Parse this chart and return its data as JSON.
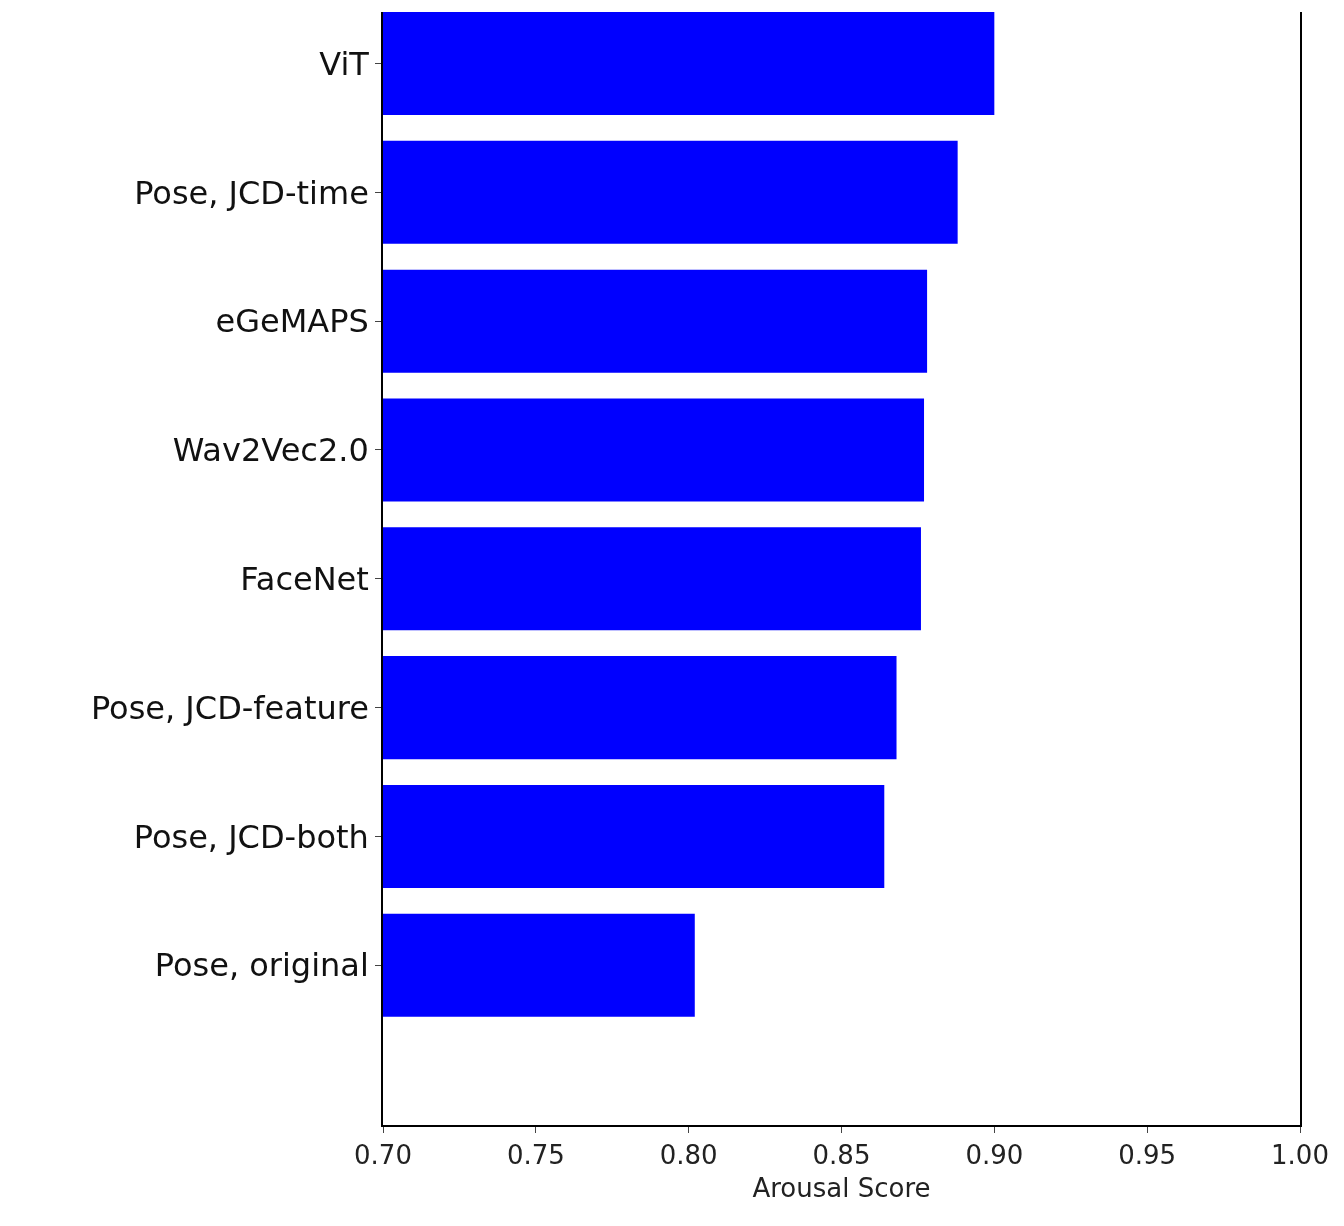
{
  "chart_data": {
    "type": "bar",
    "orientation": "horizontal",
    "xlabel": "Arousal Score",
    "categories": [
      "ViT",
      "Pose, JCD-time",
      "eGeMAPS",
      "Wav2Vec2.0",
      "FaceNet",
      "Pose, JCD-feature",
      "Pose, JCD-both",
      "Pose, original"
    ],
    "values": [
      0.9,
      0.888,
      0.878,
      0.877,
      0.876,
      0.868,
      0.864,
      0.802
    ],
    "color": "#0000ff",
    "xlim": [
      0.7,
      1.0
    ],
    "xticks": [
      {
        "value": 0.7,
        "label": "0.70"
      },
      {
        "value": 0.75,
        "label": "0.75"
      },
      {
        "value": 0.8,
        "label": "0.80"
      },
      {
        "value": 0.85,
        "label": "0.85"
      },
      {
        "value": 0.9,
        "label": "0.90"
      },
      {
        "value": 0.95,
        "label": "0.95"
      },
      {
        "value": 1.0,
        "label": "1.00"
      }
    ]
  }
}
